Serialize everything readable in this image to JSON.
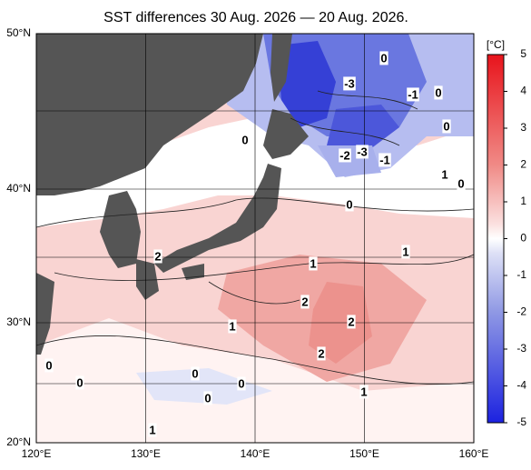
{
  "title": "SST differences 30 Aug. 2026 — 20 Aug. 2026.",
  "lon_labels": [
    "120°E",
    "130°E",
    "140°E",
    "150°E",
    "160°E"
  ],
  "lat_labels": [
    "50°N",
    "40°N",
    "30°N",
    "20°N"
  ],
  "colorbar": {
    "unit": "[°C]",
    "ticks": [
      5,
      4,
      3,
      2,
      1,
      0,
      -1,
      -2,
      -3,
      -4,
      -5
    ]
  },
  "contour_labels": [
    0,
    -3,
    -1,
    0,
    0,
    0,
    -2,
    -3,
    -1,
    1,
    0,
    0,
    2,
    1,
    1,
    2,
    2,
    1,
    2,
    0,
    0,
    0,
    0,
    0,
    1,
    1
  ]
}
